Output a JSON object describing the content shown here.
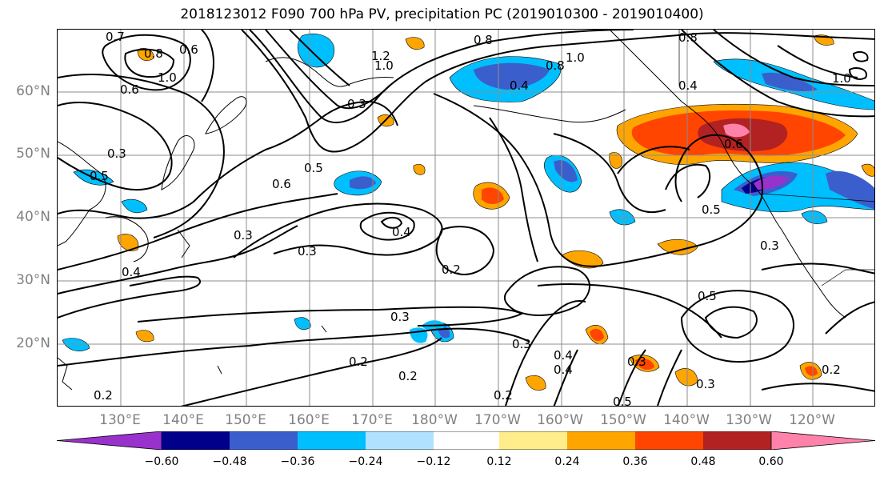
{
  "title": "2018123012 F090 700 hPa PV, precipitation PC (2019010300 - 2019010400)",
  "lat_labels": [
    "60°N",
    "50°N",
    "40°N",
    "30°N",
    "20°N"
  ],
  "lon_labels": [
    "130°E",
    "140°E",
    "150°E",
    "160°E",
    "170°E",
    "180°W",
    "170°W",
    "160°W",
    "150°W",
    "140°W",
    "130°W",
    "120°W"
  ],
  "colorbar": {
    "ticks": [
      "−0.60",
      "−0.48",
      "−0.36",
      "−0.24",
      "−0.12",
      "0.12",
      "0.24",
      "0.36",
      "0.48",
      "0.60"
    ],
    "colors": [
      "#9932cc",
      "#00008b",
      "#3a5fcd",
      "#00bfff",
      "#b0e2ff",
      "#ffffff",
      "#ffec8b",
      "#ffa500",
      "#ff4500",
      "#b22222",
      "#ff82ab"
    ]
  },
  "contour_labels": [
    "0.7",
    "0.8",
    "0.6",
    "1.0",
    "0.6",
    "0.3",
    "0.5",
    "1.2",
    "1.0",
    "0.8",
    "0.4",
    "0.3",
    "0.5",
    "0.6",
    "0.3",
    "0.4",
    "0.3",
    "0.2",
    "0.4",
    "0.3",
    "0.2",
    "0.2",
    "0.2",
    "0.3",
    "0.4",
    "0.3",
    "0.5",
    "0.5",
    "0.3",
    "0.2",
    "0.5",
    "0.3",
    "0.6",
    "0.4",
    "0.8",
    "0.8",
    "1.0",
    "1.0",
    "0.2",
    "0.4"
  ]
}
